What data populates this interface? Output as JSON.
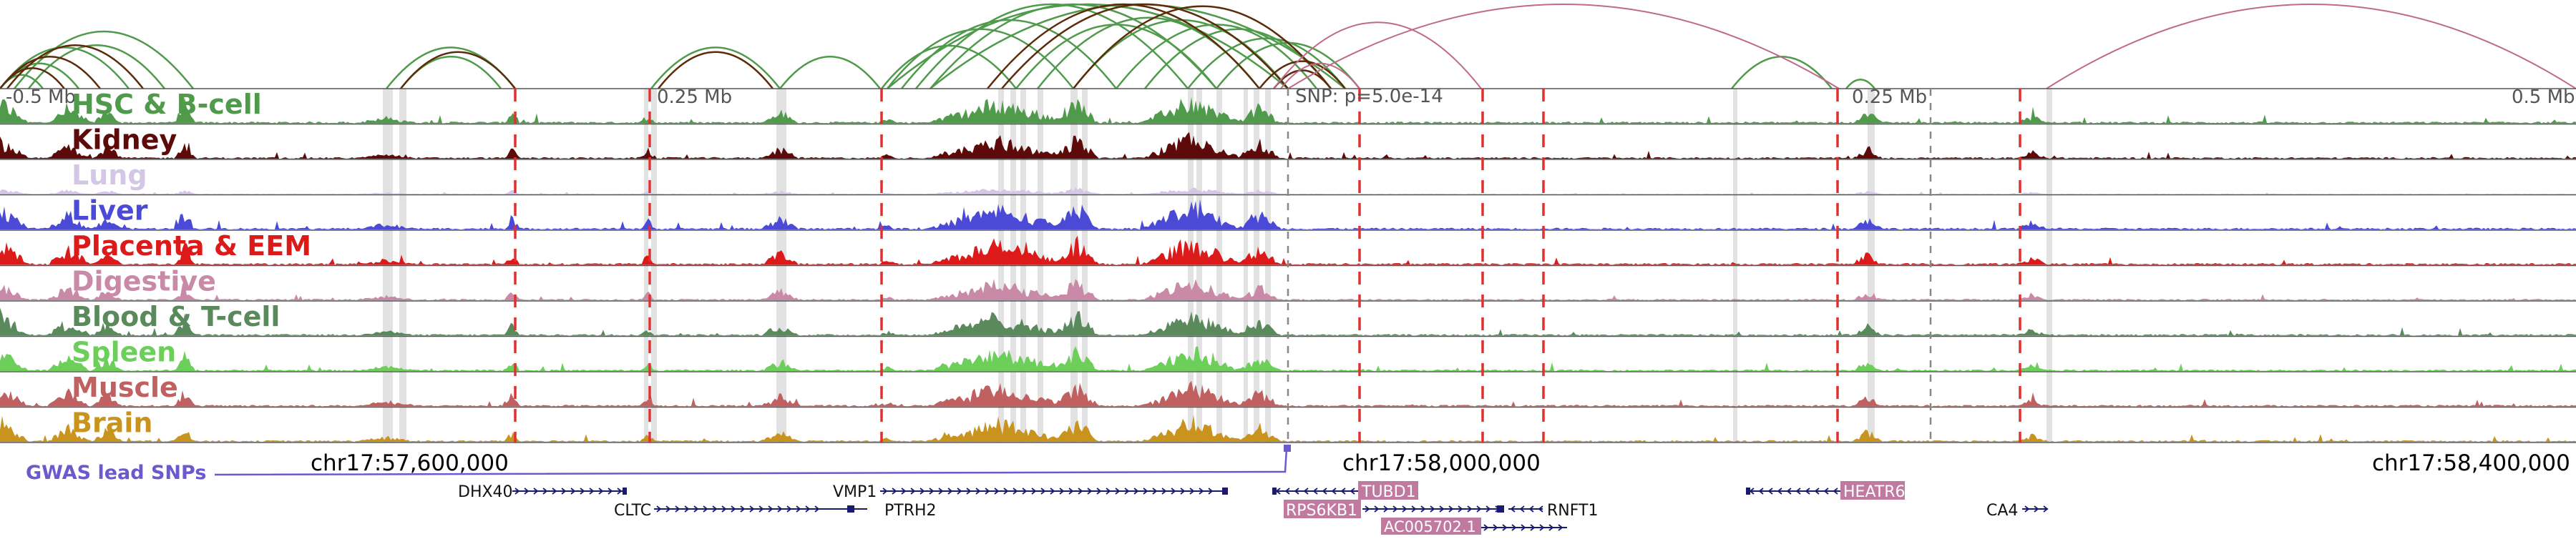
{
  "tracks": [
    {
      "label": "HSC & B-cell",
      "color": "#4f9a4b"
    },
    {
      "label": "Kidney",
      "color": "#5c0a0a"
    },
    {
      "label": "Lung",
      "color": "#d4c6e6"
    },
    {
      "label": "Liver",
      "color": "#4a4ad6"
    },
    {
      "label": "Placenta & EEM",
      "color": "#dd1a1a"
    },
    {
      "label": "Digestive",
      "color": "#c98aa8"
    },
    {
      "label": "Blood & T-cell",
      "color": "#5a8a5c"
    },
    {
      "label": "Spleen",
      "color": "#6ccf5a"
    },
    {
      "label": "Muscle",
      "color": "#c06060"
    },
    {
      "label": "Brain",
      "color": "#c8941e"
    }
  ],
  "distance_labels": {
    "left": "-0.5 Mb",
    "left_mid": "0.25 Mb",
    "snp": "SNP: p=5.0e-14",
    "right_mid": "0.25 Mb",
    "right": "0.5 Mb"
  },
  "coords": [
    "chr17:57,600,000",
    "chr17:58,000,000",
    "chr17:58,400,000"
  ],
  "gwas_label": "GWAS lead SNPs",
  "genes": {
    "dhx40": "DHX40",
    "cltc": "CLTC",
    "ptrh2": "PTRH2",
    "vmp1": "VMP1",
    "tubd1": "TUBD1",
    "rps6kb1": "RPS6KB1",
    "ac005702": "AC005702.1",
    "rnft1": "RNFT1",
    "heatr6": "HEATR6",
    "ca4": "CA4"
  },
  "colors": {
    "arc_green": "#4f9a4b",
    "arc_dark": "#5c2b0a",
    "arc_pink": "#c06a8a",
    "red_line": "#e03030",
    "gene_navy": "#1a1a6e",
    "gene_badge": "#c07aa0",
    "gwas": "#6a5acd"
  }
}
